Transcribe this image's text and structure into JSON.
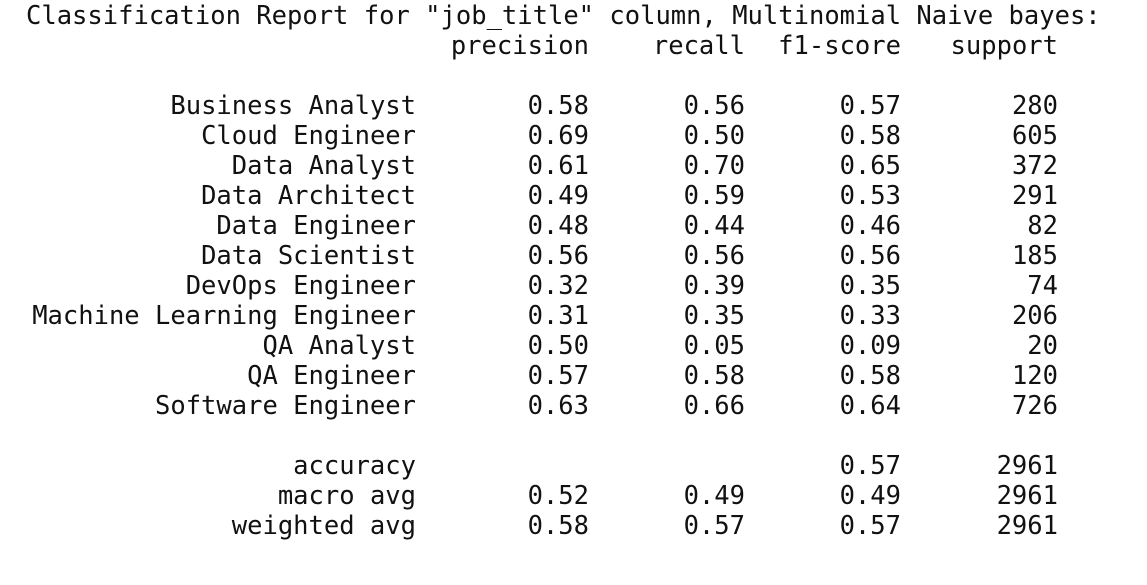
{
  "report": {
    "title": "Classification Report for \"job_title\" column, Multinomial Naive bayes:",
    "headers": {
      "precision": "precision",
      "recall": "recall",
      "f1": "f1-score",
      "support": "support"
    },
    "rows": [
      {
        "label": "Business Analyst",
        "precision": "0.58",
        "recall": "0.56",
        "f1": "0.57",
        "support": "280"
      },
      {
        "label": "Cloud Engineer",
        "precision": "0.69",
        "recall": "0.50",
        "f1": "0.58",
        "support": "605"
      },
      {
        "label": "Data Analyst",
        "precision": "0.61",
        "recall": "0.70",
        "f1": "0.65",
        "support": "372"
      },
      {
        "label": "Data Architect",
        "precision": "0.49",
        "recall": "0.59",
        "f1": "0.53",
        "support": "291"
      },
      {
        "label": "Data Engineer",
        "precision": "0.48",
        "recall": "0.44",
        "f1": "0.46",
        "support": "82"
      },
      {
        "label": "Data Scientist",
        "precision": "0.56",
        "recall": "0.56",
        "f1": "0.56",
        "support": "185"
      },
      {
        "label": "DevOps Engineer",
        "precision": "0.32",
        "recall": "0.39",
        "f1": "0.35",
        "support": "74"
      },
      {
        "label": "Machine Learning Engineer",
        "precision": "0.31",
        "recall": "0.35",
        "f1": "0.33",
        "support": "206"
      },
      {
        "label": "QA Analyst",
        "precision": "0.50",
        "recall": "0.05",
        "f1": "0.09",
        "support": "20"
      },
      {
        "label": "QA Engineer",
        "precision": "0.57",
        "recall": "0.58",
        "f1": "0.58",
        "support": "120"
      },
      {
        "label": "Software Engineer",
        "precision": "0.63",
        "recall": "0.66",
        "f1": "0.64",
        "support": "726"
      }
    ],
    "summary": [
      {
        "label": "accuracy",
        "precision": "",
        "recall": "",
        "f1": "0.57",
        "support": "2961"
      },
      {
        "label": "macro avg",
        "precision": "0.52",
        "recall": "0.49",
        "f1": "0.49",
        "support": "2961"
      },
      {
        "label": "weighted avg",
        "precision": "0.58",
        "recall": "0.57",
        "f1": "0.57",
        "support": "2961"
      }
    ]
  }
}
